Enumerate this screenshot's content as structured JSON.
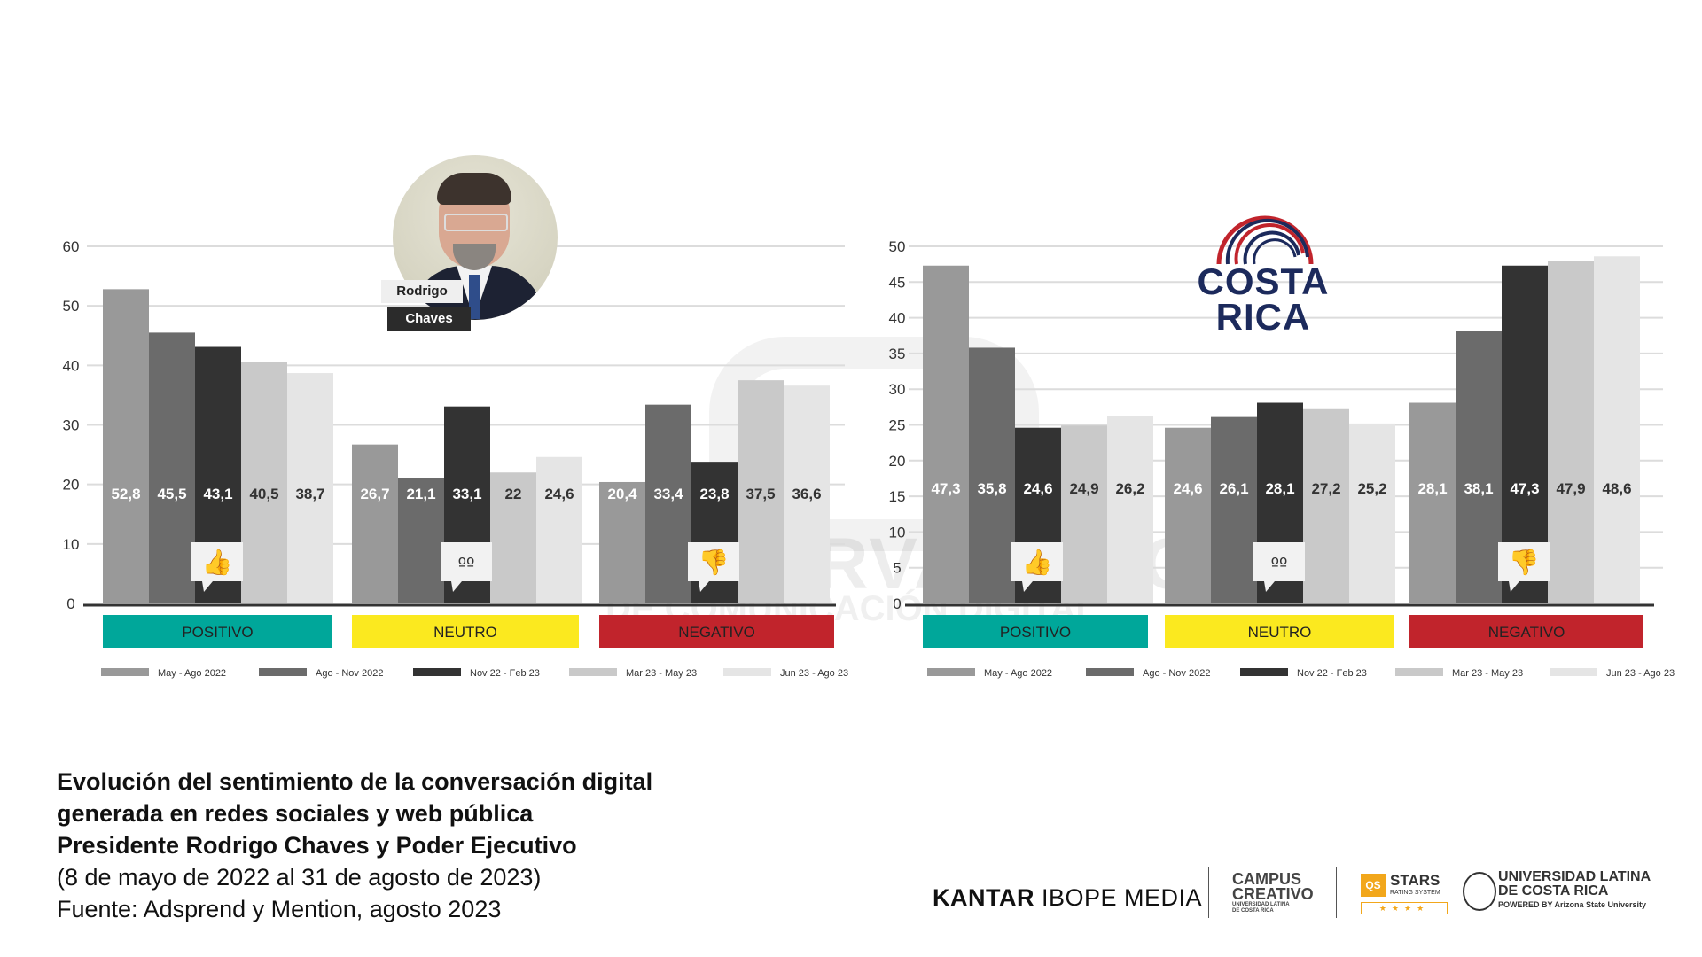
{
  "colors": {
    "series": [
      "#999999",
      "#6b6b6b",
      "#333333",
      "#c9c9c9",
      "#e5e5e5"
    ],
    "positivo": "#00a79a",
    "neutro": "#fbe91f",
    "negativo": "#c1242c"
  },
  "person": {
    "first_name": "Rodrigo",
    "last_name": "Chaves"
  },
  "country_logo": {
    "line1": "COSTA",
    "line2": "RICA"
  },
  "watermark": {
    "line1": "OBSERVATORIO",
    "line2": "DE COMUNICACIÓN DIGITAL"
  },
  "chart_data": [
    {
      "type": "bar",
      "title": "",
      "ylim": [
        0,
        60
      ],
      "yticks": [
        "0",
        "10",
        "20",
        "30",
        "40",
        "50",
        "60"
      ],
      "grid": true,
      "legend_position": "bottom",
      "categories": [
        "POSITIVO",
        "NEUTRO",
        "NEGATIVO"
      ],
      "category_icons": [
        "thumbs-up-icon",
        "neutral-face-icon",
        "thumbs-down-icon"
      ],
      "series": [
        {
          "name": "May - Ago 2022",
          "values": [
            52.8,
            26.7,
            20.4
          ],
          "labels": [
            "52,8",
            "26,7",
            "20,4"
          ]
        },
        {
          "name": "Ago - Nov 2022",
          "values": [
            45.5,
            21.1,
            33.4
          ],
          "labels": [
            "45,5",
            "21,1",
            "33,4"
          ]
        },
        {
          "name": "Nov 22 - Feb 23",
          "values": [
            43.1,
            33.1,
            23.8
          ],
          "labels": [
            "43,1",
            "33,1",
            "23,8"
          ]
        },
        {
          "name": "Mar 23 - May 23",
          "values": [
            40.5,
            22,
            37.5
          ],
          "labels": [
            "40,5",
            "22",
            "37,5"
          ]
        },
        {
          "name": "Jun 23 - Ago 23",
          "values": [
            38.7,
            24.6,
            36.6
          ],
          "labels": [
            "38,7",
            "24,6",
            "36,6"
          ]
        }
      ]
    },
    {
      "type": "bar",
      "title": "",
      "ylim": [
        0,
        50
      ],
      "yticks": [
        "0",
        "5",
        "10",
        "15",
        "20",
        "25",
        "30",
        "35",
        "40",
        "45",
        "50"
      ],
      "grid": true,
      "legend_position": "bottom",
      "categories": [
        "POSITIVO",
        "NEUTRO",
        "NEGATIVO"
      ],
      "category_icons": [
        "thumbs-up-icon",
        "neutral-face-icon",
        "thumbs-down-icon"
      ],
      "series": [
        {
          "name": "May - Ago 2022",
          "values": [
            47.3,
            24.6,
            28.1
          ],
          "labels": [
            "47,3",
            "24,6",
            "28,1"
          ]
        },
        {
          "name": "Ago - Nov 2022",
          "values": [
            35.8,
            26.1,
            38.1
          ],
          "labels": [
            "35,8",
            "26,1",
            "38,1"
          ]
        },
        {
          "name": "Nov 22 - Feb 23",
          "values": [
            24.6,
            28.1,
            47.3
          ],
          "labels": [
            "24,6",
            "28,1",
            "47,3"
          ]
        },
        {
          "name": "Mar 23 - May 23",
          "values": [
            24.9,
            27.2,
            47.9
          ],
          "labels": [
            "24,9",
            "27,2",
            "47,9"
          ]
        },
        {
          "name": "Jun 23 - Ago 23",
          "values": [
            26.2,
            25.2,
            48.6
          ],
          "labels": [
            "26,2",
            "25,2",
            "48,6"
          ]
        }
      ]
    }
  ],
  "caption": {
    "line1": "Evolución del sentimiento de la conversación digital",
    "line2": "generada en redes sociales y web pública",
    "line3": "Presidente Rodrigo Chaves y Poder Ejecutivo",
    "line4": "(8 de mayo de 2022 al 31 de agosto de 2023)",
    "line5": "Fuente: Adsprend y Mention, agosto 2023"
  },
  "logos": {
    "kantar_bold": "KANTAR",
    "kantar_rest": " IBOPE MEDIA",
    "campus_line1": "CAMPUS",
    "campus_line2": "CREATIVO",
    "campus_sub1": "UNIVERSIDAD LATINA",
    "campus_sub2": "DE COSTA RICA",
    "qs": "QS",
    "stars": "STARS",
    "stars_sub": "RATING SYSTEM",
    "stars_rating": "★★★★",
    "ulat_line1": "UNIVERSIDAD LATINA",
    "ulat_line2": "DE COSTA RICA",
    "ulat_sub": "POWERED BY Arizona State University"
  }
}
